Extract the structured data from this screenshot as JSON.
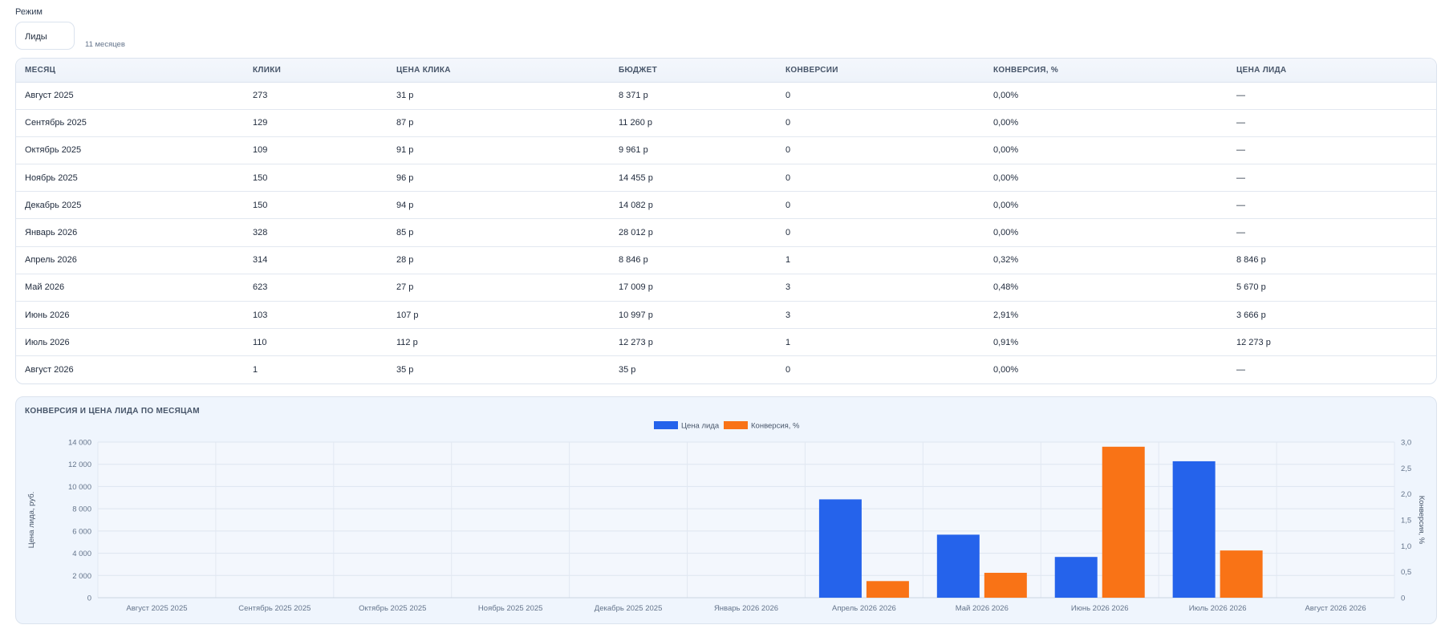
{
  "mode": {
    "label": "Режим",
    "value": "Лиды",
    "months_text": "11 месяцев"
  },
  "table": {
    "headers": [
      "МЕСЯЦ",
      "КЛИКИ",
      "ЦЕНА КЛИКА",
      "БЮДЖЕТ",
      "КОНВЕРСИИ",
      "КОНВЕРСИЯ, %",
      "ЦЕНА ЛИДА"
    ],
    "rows": [
      [
        "Август 2025",
        "273",
        "31 р",
        "8 371 р",
        "0",
        "0,00%",
        "—"
      ],
      [
        "Сентябрь 2025",
        "129",
        "87 р",
        "11 260 р",
        "0",
        "0,00%",
        "—"
      ],
      [
        "Октябрь 2025",
        "109",
        "91 р",
        "9 961 р",
        "0",
        "0,00%",
        "—"
      ],
      [
        "Ноябрь 2025",
        "150",
        "96 р",
        "14 455 р",
        "0",
        "0,00%",
        "—"
      ],
      [
        "Декабрь 2025",
        "150",
        "94 р",
        "14 082 р",
        "0",
        "0,00%",
        "—"
      ],
      [
        "Январь 2026",
        "328",
        "85 р",
        "28 012 р",
        "0",
        "0,00%",
        "—"
      ],
      [
        "Апрель 2026",
        "314",
        "28 р",
        "8 846 р",
        "1",
        "0,32%",
        "8 846 р"
      ],
      [
        "Май 2026",
        "623",
        "27 р",
        "17 009 р",
        "3",
        "0,48%",
        "5 670 р"
      ],
      [
        "Июнь 2026",
        "103",
        "107 р",
        "10 997 р",
        "3",
        "2,91%",
        "3 666 р"
      ],
      [
        "Июль 2026",
        "110",
        "112 р",
        "12 273 р",
        "1",
        "0,91%",
        "12 273 р"
      ],
      [
        "Август 2026",
        "1",
        "35 р",
        "35 р",
        "0",
        "0,00%",
        "—"
      ]
    ]
  },
  "chart_title": "КОНВЕРСИЯ И ЦЕНА ЛИДА ПО МЕСЯЦАМ",
  "chart_data": {
    "type": "bar",
    "categories": [
      "Август 2025 2025",
      "Сентябрь 2025 2025",
      "Октябрь 2025 2025",
      "Ноябрь 2025 2025",
      "Декабрь 2025 2025",
      "Январь 2026 2026",
      "Апрель 2026 2026",
      "Май 2026 2026",
      "Июнь 2026 2026",
      "Июль 2026 2026",
      "Август 2026 2026"
    ],
    "series": [
      {
        "name": "Цена лида",
        "axis": "left",
        "color": "#2563eb",
        "values": [
          null,
          null,
          null,
          null,
          null,
          null,
          8846,
          5670,
          3666,
          12273,
          null
        ]
      },
      {
        "name": "Конверсия, %",
        "axis": "right",
        "color": "#f97316",
        "values": [
          0,
          0,
          0,
          0,
          0,
          0,
          0.32,
          0.48,
          2.91,
          0.91,
          0
        ]
      }
    ],
    "ylabel": "Цена лида, руб.",
    "y2label": "Конверсия, %",
    "ylim": [
      0,
      14000
    ],
    "y2lim": [
      0,
      3
    ],
    "yticks": [
      "0",
      "2 000",
      "4 000",
      "6 000",
      "8 000",
      "10 000",
      "12 000",
      "14 000"
    ],
    "y2ticks": [
      "0",
      "0,5",
      "1,0",
      "1,5",
      "2,0",
      "2,5",
      "3,0"
    ],
    "legend": "top-center",
    "grid": true
  }
}
